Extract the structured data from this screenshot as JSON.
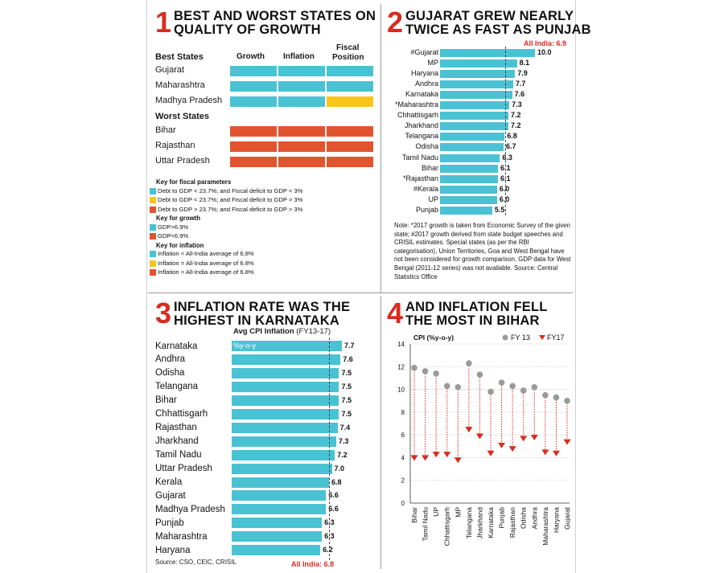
{
  "colors": {
    "teal": "#49c2d3",
    "yellow": "#f7c51c",
    "red": "#e2542f",
    "accent": "#d92b1e",
    "dot": "#9a9a9a"
  },
  "panel1": {
    "number": "1",
    "title_line1": "BEST AND WORST STATES ON",
    "title_line2": "QUALITY OF GROWTH",
    "col_headers": [
      "Growth",
      "Inflation",
      "Fiscal Position"
    ],
    "fiscal_line1": "Fiscal",
    "fiscal_line2": "Position",
    "best_label": "Best States",
    "worst_label": "Worst States",
    "best": [
      {
        "state": "Gujarat",
        "cells": [
          "teal",
          "teal",
          "teal"
        ]
      },
      {
        "state": "Maharashtra",
        "cells": [
          "teal",
          "teal",
          "teal"
        ]
      },
      {
        "state": "Madhya Pradesh",
        "cells": [
          "teal",
          "teal",
          "yellow"
        ]
      }
    ],
    "worst": [
      {
        "state": "Bihar",
        "cells": [
          "red",
          "red",
          "red"
        ]
      },
      {
        "state": "Rajasthan",
        "cells": [
          "red",
          "red",
          "red"
        ]
      },
      {
        "state": "Uttar Pradesh",
        "cells": [
          "red",
          "red",
          "red"
        ]
      }
    ],
    "keys": [
      {
        "header": "Key for fiscal parameters",
        "items": [
          {
            "color": "teal",
            "text": "Debt to GDP < 23.7%; and Fiscal deficit to GDP < 3%"
          },
          {
            "color": "yellow",
            "text": "Debt to GDP < 23.7%; and Fiscal deficit to GDP > 3%"
          },
          {
            "color": "red",
            "text": "Debt to GDP > 23.7%; and Fiscal deficit to GDP > 3%"
          }
        ]
      },
      {
        "header": "Key for growth",
        "items": [
          {
            "color": "teal",
            "text": "GDP>6.9%"
          },
          {
            "color": "red",
            "text": "GDP<6.9%"
          }
        ]
      },
      {
        "header": "Key for inflation",
        "items": [
          {
            "color": "teal",
            "text": "Inflation < All-India average of 6.8%"
          },
          {
            "color": "yellow",
            "text": "Inflation = All-India average of 6.8%"
          },
          {
            "color": "red",
            "text": "Inflation > All-India average of 6.8%"
          }
        ]
      }
    ]
  },
  "panel2": {
    "number": "2",
    "title_line1": "GUJARAT GREW NEARLY",
    "title_line2": "TWICE AS FAST AS PUNJAB",
    "all_india_label": "All India: 6.9",
    "note": "Note: *2017 growth is taken from Economic Survey of the given state; #2017 growth derived from state budget speeches and CRISIL estimates. Special states (as per the RBI categorisation), Union Territories, Goa and West Bengal have not been considered for growth comparison. GDP data for West Bengal (2011-12 series) was not available. Source: Central Statistics Office"
  },
  "panel3": {
    "number": "3",
    "title_line1": "INFLATION RATE WAS THE",
    "title_line2": "HIGHEST IN KARNATAKA",
    "subtitle": "Avg CPI Inflation",
    "subtitle_years": "(FY13-17)",
    "unit_label": "%y-o-y",
    "source": "Source: CSO, CEIC, CRISIL",
    "all_india_label": "All India: 6.8"
  },
  "panel4": {
    "number": "4",
    "title_line1": "AND INFLATION FELL",
    "title_line2": "THE MOST IN BIHAR",
    "y_title": "CPI (%y-o-y)",
    "legend_fy13": "FY 13",
    "legend_fy17": "FY17"
  },
  "chart_data": [
    {
      "type": "table",
      "title": "BEST AND WORST STATES ON QUALITY OF GROWTH",
      "columns": [
        "Growth",
        "Inflation",
        "Fiscal Position"
      ],
      "rows": [
        {
          "state": "Gujarat",
          "group": "Best States",
          "values": [
            "teal",
            "teal",
            "teal"
          ]
        },
        {
          "state": "Maharashtra",
          "group": "Best States",
          "values": [
            "teal",
            "teal",
            "teal"
          ]
        },
        {
          "state": "Madhya Pradesh",
          "group": "Best States",
          "values": [
            "teal",
            "teal",
            "yellow"
          ]
        },
        {
          "state": "Bihar",
          "group": "Worst States",
          "values": [
            "red",
            "red",
            "red"
          ]
        },
        {
          "state": "Rajasthan",
          "group": "Worst States",
          "values": [
            "red",
            "red",
            "red"
          ]
        },
        {
          "state": "Uttar Pradesh",
          "group": "Worst States",
          "values": [
            "red",
            "red",
            "red"
          ]
        }
      ]
    },
    {
      "type": "bar",
      "orientation": "horizontal",
      "title": "GUJARAT GREW NEARLY TWICE AS FAST AS PUNJAB",
      "categories": [
        "#Gujarat",
        "MP",
        "Haryana",
        "Andhra",
        "Karnataka",
        "*Maharashtra",
        "Chhattisgarh",
        "Jharkhand",
        "Telangana",
        "Odisha",
        "Tamil Nadu",
        "Bihar",
        "*Rajasthan",
        "#Kerala",
        "UP",
        "Punjab"
      ],
      "values": [
        10.0,
        8.1,
        7.9,
        7.7,
        7.6,
        7.3,
        7.2,
        7.2,
        6.8,
        6.7,
        6.3,
        6.1,
        6.1,
        6.0,
        6.0,
        5.5
      ],
      "value_labels": [
        "10.0",
        "8.1",
        "7.9",
        "7.7",
        "7.6",
        "7.3",
        "7.2",
        "7.2",
        "6.8",
        "6.7",
        "6.3",
        "6.1",
        "6.1",
        "6.0",
        "6.0",
        "5.5"
      ],
      "reference": {
        "label": "All India: 6.9",
        "value": 6.9
      },
      "xlim": [
        0,
        10.0
      ]
    },
    {
      "type": "bar",
      "orientation": "horizontal",
      "title": "INFLATION RATE WAS THE HIGHEST IN KARNATAKA",
      "subtitle": "Avg CPI Inflation (FY13-17)",
      "categories": [
        "Karnataka",
        "Andhra",
        "Odisha",
        "Telangana",
        "Bihar",
        "Chhattisgarh",
        "Rajasthan",
        "Jharkhand",
        "Tamil Nadu",
        "Uttar Pradesh",
        "Kerala",
        "Gujarat",
        "Madhya Pradesh",
        "Punjab",
        "Maharashtra",
        "Haryana"
      ],
      "values": [
        7.7,
        7.6,
        7.5,
        7.5,
        7.5,
        7.5,
        7.4,
        7.3,
        7.2,
        7.0,
        6.8,
        6.6,
        6.6,
        6.3,
        6.3,
        6.2
      ],
      "value_labels": [
        "7.7",
        "7.6",
        "7.5",
        "7.5",
        "7.5",
        "7.5",
        "7.4",
        "7.3",
        "7.2",
        "7.0",
        "6.8",
        "6.6",
        "6.6",
        "6.3",
        "6.3",
        "6.2"
      ],
      "reference": {
        "label": "All India: 6.8",
        "value": 6.8
      },
      "xlim": [
        0,
        7.7
      ]
    },
    {
      "type": "scatter",
      "title": "AND INFLATION FELL THE MOST IN BIHAR",
      "ylabel": "CPI (%y-o-y)",
      "ylim": [
        0,
        14
      ],
      "yticks": [
        0,
        2,
        4,
        6,
        8,
        10,
        12,
        14
      ],
      "categories": [
        "Bihar",
        "Tamil Nadu",
        "UP",
        "Chhattisgarh",
        "MP",
        "Telangana",
        "Jharkhand",
        "Karnataka",
        "Punjab",
        "Rajasthan",
        "Odisha",
        "Andhra",
        "Maharashtra",
        "Haryana",
        "Gujarat"
      ],
      "series": [
        {
          "name": "FY 13",
          "marker": "dot",
          "values": [
            11.9,
            11.6,
            11.4,
            10.3,
            10.2,
            12.3,
            11.3,
            9.8,
            10.6,
            10.3,
            9.9,
            10.2,
            9.5,
            9.3,
            9.0
          ]
        },
        {
          "name": "FY17",
          "marker": "triangle-down",
          "values": [
            4.0,
            4.0,
            4.3,
            4.3,
            3.8,
            6.5,
            5.9,
            4.4,
            5.1,
            4.8,
            5.7,
            5.8,
            4.5,
            4.4,
            5.4
          ]
        }
      ]
    }
  ]
}
